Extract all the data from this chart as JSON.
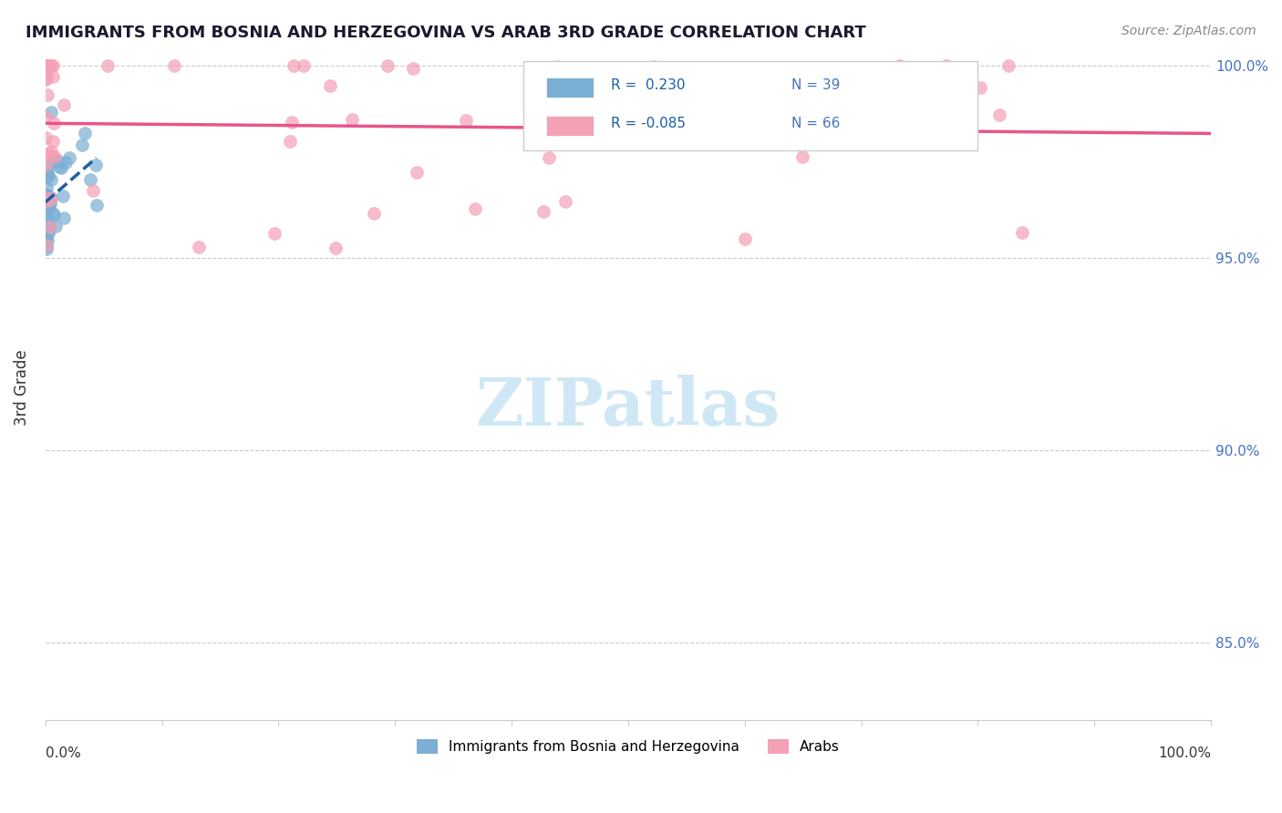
{
  "title": "IMMIGRANTS FROM BOSNIA AND HERZEGOVINA VS ARAB 3RD GRADE CORRELATION CHART",
  "source_text": "Source: ZipAtlas.com",
  "ylabel": "3rd Grade",
  "y_ticks": [
    0.85,
    0.9,
    0.95,
    1.0
  ],
  "y_tick_labels": [
    "85.0%",
    "90.0%",
    "95.0%",
    "100.0%"
  ],
  "x_range": [
    0.0,
    1.0
  ],
  "y_range": [
    0.83,
    1.003
  ],
  "color_bosnia": "#7bafd4",
  "color_arab": "#f4a0b5",
  "trendline_color_bosnia": "#1a5fa8",
  "trendline_color_arab": "#e8558a",
  "watermark": "ZIPatlas",
  "watermark_color": "#d0e8f5"
}
